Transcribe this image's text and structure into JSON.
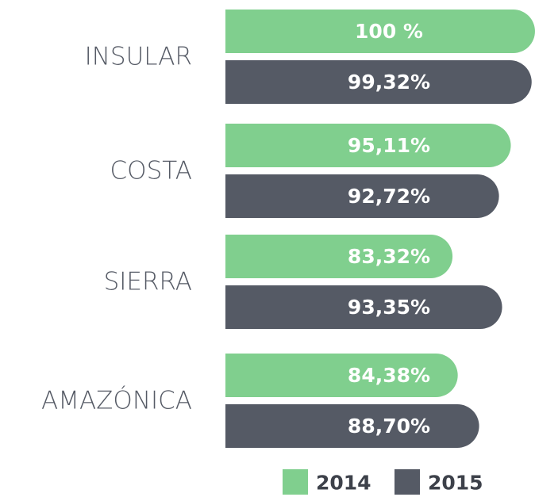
{
  "chart_data": {
    "type": "bar",
    "orientation": "horizontal",
    "categories": [
      "INSULAR",
      "COSTA",
      "SIERRA",
      "AMAZÓNICA"
    ],
    "xlim": [
      37.4,
      100
    ],
    "legend": "bottom-right",
    "series": [
      {
        "name": "2014",
        "color": "#80cf8e",
        "values": [
          100,
          95.11,
          83.32,
          84.38
        ],
        "value_labels": [
          "100 %",
          "95,11%",
          "83,32%",
          "84,38%"
        ]
      },
      {
        "name": "2015",
        "color": "#555a65",
        "values": [
          99.32,
          92.72,
          93.35,
          88.7
        ],
        "value_labels": [
          "99,32%",
          "92,72%",
          "93,35%",
          "88,70%"
        ]
      }
    ]
  }
}
